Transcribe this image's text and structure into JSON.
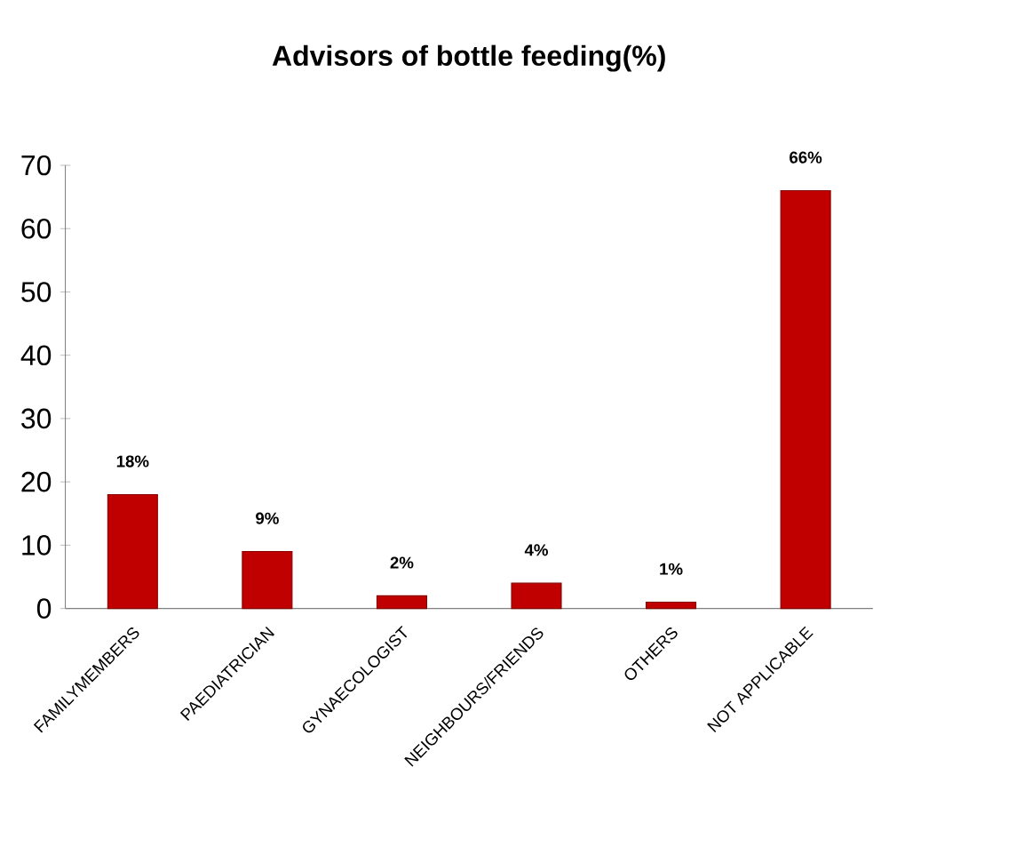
{
  "chart_data": {
    "type": "bar",
    "title": "Advisors of bottle feeding(%)",
    "categories": [
      "FAMILYMEMBERS",
      "PAEDIATRICIAN",
      "GYNAECOLOGIST",
      "NEIGHBOURS/FRIENDS",
      "OTHERS",
      "NOT APPLICABLE"
    ],
    "values": [
      18,
      9,
      2,
      4,
      1,
      66
    ],
    "value_labels": [
      "18%",
      "9%",
      "2%",
      "4%",
      "1%",
      "66%"
    ],
    "color": "#c00000",
    "ylim": [
      0,
      70
    ],
    "yticks": [
      0,
      10,
      20,
      30,
      40,
      50,
      60,
      70
    ],
    "grid": false
  }
}
